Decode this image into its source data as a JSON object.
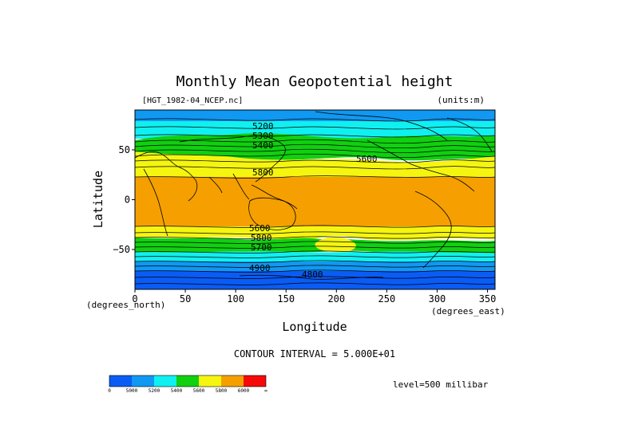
{
  "chart_data": {
    "type": "heatmap",
    "title": "Monthly Mean Geopotential height",
    "file_label": "[HGT_1982-04_NCEP.nc]",
    "units_label": "(units:m)",
    "xlabel": "Longitude",
    "ylabel": "Latitude",
    "x_unit_label": "(degrees_east)",
    "y_unit_label": "(degrees_north)",
    "xlim": [
      0,
      357.5
    ],
    "ylim": [
      -90,
      90
    ],
    "x_ticks": [
      0,
      50,
      100,
      150,
      200,
      250,
      300,
      350
    ],
    "y_ticks": [
      50,
      0,
      -50
    ],
    "y_tick_labels": [
      "50",
      "0",
      "−50"
    ],
    "contour_interval_text": "CONTOUR INTERVAL = 5.000E+01",
    "level_text": "level=500 millibar",
    "contour_labels": [
      "5200",
      "5300",
      "5400",
      "5600",
      "5800",
      "5600",
      "5800",
      "5700",
      "4900",
      "4800"
    ],
    "color_levels": [
      {
        "label": "0",
        "color": "#0a5cf5"
      },
      {
        "label": "5000",
        "color": "#1098f2"
      },
      {
        "label": "5200",
        "color": "#10f0f0"
      },
      {
        "label": "5400",
        "color": "#10d010"
      },
      {
        "label": "5600",
        "color": "#f5f510"
      },
      {
        "label": "5800",
        "color": "#f5a000"
      },
      {
        "label": "6000",
        "color": "#f50a0a"
      },
      {
        "label": "∞",
        "color": ""
      }
    ],
    "bands_by_latitude": [
      {
        "lat_from": 90,
        "lat_to": 80,
        "level": "5000-5200"
      },
      {
        "lat_from": 80,
        "lat_to": 68,
        "level": "5200-5400"
      },
      {
        "lat_from": 68,
        "lat_to": 58,
        "level": "5400-5600"
      },
      {
        "lat_from": 58,
        "lat_to": 25,
        "level": "5600-5800"
      },
      {
        "lat_from": 25,
        "lat_to": -25,
        "level": "5800-6000"
      },
      {
        "lat_from": -25,
        "lat_to": -42,
        "level": "5600-5800"
      },
      {
        "lat_from": -42,
        "lat_to": -52,
        "level": "5400-5600"
      },
      {
        "lat_from": -52,
        "lat_to": -58,
        "level": "5200-5400"
      },
      {
        "lat_from": -58,
        "lat_to": -68,
        "level": "5000-5200"
      },
      {
        "lat_from": -68,
        "lat_to": -90,
        "level": "0-5000"
      }
    ]
  }
}
